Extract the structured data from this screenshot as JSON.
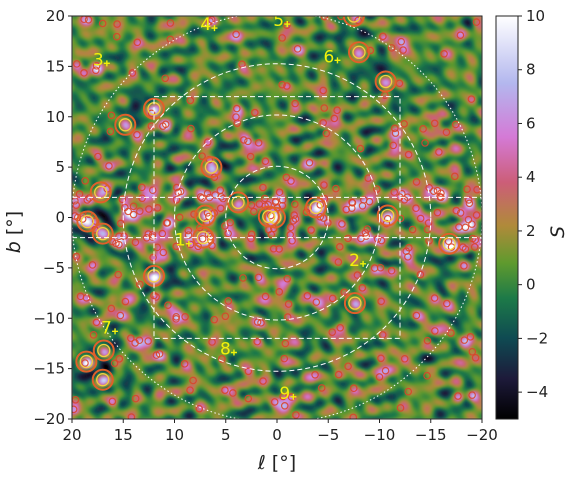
{
  "chart_data": {
    "type": "heatmap",
    "x_axis": {
      "symbol": "ℓ",
      "unit": "[°]",
      "range": [
        20,
        -20
      ],
      "reversed": true,
      "ticks": [
        20,
        15,
        10,
        5,
        0,
        -5,
        -10,
        -15,
        -20
      ]
    },
    "y_axis": {
      "symbol": "b",
      "unit": "[°]",
      "range": [
        -20,
        20
      ],
      "ticks": [
        -20,
        -15,
        -10,
        -5,
        0,
        5,
        10,
        15,
        20
      ]
    },
    "colorbar": {
      "label": "S",
      "range": [
        -5,
        10
      ],
      "ticks": [
        -4,
        -2,
        0,
        2,
        4,
        6,
        8,
        10
      ],
      "colormap": [
        {
          "value": -5,
          "color": "#000000"
        },
        {
          "value": -3.5,
          "color": "#1d1a3a"
        },
        {
          "value": -2,
          "color": "#0f4a52"
        },
        {
          "value": -0.5,
          "color": "#1d7a48"
        },
        {
          "value": 0.8,
          "color": "#5f9a2e"
        },
        {
          "value": 2.2,
          "color": "#b08a3a"
        },
        {
          "value": 3.8,
          "color": "#cc5e78"
        },
        {
          "value": 5.5,
          "color": "#d47ad6"
        },
        {
          "value": 7.5,
          "color": "#b3b7ee"
        },
        {
          "value": 10,
          "color": "#ffffff"
        }
      ]
    },
    "overlays": {
      "circles_deg": [
        5,
        10,
        15,
        20
      ],
      "box": {
        "l": [
          12,
          -12
        ],
        "b": [
          -12,
          12
        ]
      },
      "band_b": [
        -2,
        2
      ]
    },
    "labeled_sources": [
      {
        "id": "1",
        "l": 8.6,
        "b": -2.6
      },
      {
        "id": "2",
        "l": -8.4,
        "b": -4.6
      },
      {
        "id": "3",
        "l": 16.6,
        "b": 15.3
      },
      {
        "id": "4",
        "l": 6.1,
        "b": 18.8
      },
      {
        "id": "5",
        "l": -1.0,
        "b": 19.2
      },
      {
        "id": "6",
        "l": -5.9,
        "b": 15.6
      },
      {
        "id": "7",
        "l": 15.8,
        "b": -11.3
      },
      {
        "id": "8",
        "l": 4.2,
        "b": -13.4
      },
      {
        "id": "9",
        "l": -1.6,
        "b": -17.8
      }
    ],
    "bright_sources": [
      {
        "l": 12.0,
        "b": 10.8,
        "s": 9.5
      },
      {
        "l": 14.8,
        "b": 9.2,
        "s": 6.5
      },
      {
        "l": -8.0,
        "b": 16.4,
        "s": 8.5
      },
      {
        "l": 6.4,
        "b": 5.0,
        "s": 8.0
      },
      {
        "l": 17.2,
        "b": 2.5,
        "s": 9.0
      },
      {
        "l": 18.5,
        "b": -0.4,
        "s": 8.5
      },
      {
        "l": 17.0,
        "b": -1.6,
        "s": 7.0
      },
      {
        "l": 7.2,
        "b": -2.0,
        "s": 9.0
      },
      {
        "l": 3.8,
        "b": 1.5,
        "s": 9.0
      },
      {
        "l": 0.2,
        "b": 0.0,
        "s": 7.5
      },
      {
        "l": -3.8,
        "b": 1.0,
        "s": 9.0
      },
      {
        "l": -16.8,
        "b": -2.6,
        "s": 10.0
      },
      {
        "l": 12.0,
        "b": -5.8,
        "s": 9.5
      },
      {
        "l": -7.6,
        "b": -8.5,
        "s": 9.0
      },
      {
        "l": 18.6,
        "b": -14.3,
        "s": 9.0
      },
      {
        "l": 16.9,
        "b": -13.2,
        "s": 8.5
      },
      {
        "l": 17.0,
        "b": -16.1,
        "s": 8.0
      },
      {
        "l": -10.6,
        "b": 13.5,
        "s": 5.5
      },
      {
        "l": 7.0,
        "b": 0.2,
        "s": 5.5
      },
      {
        "l": -10.8,
        "b": 0.2,
        "s": 6.0
      },
      {
        "l": 0.8,
        "b": 0.1,
        "s": 7.0
      },
      {
        "l": -7.5,
        "b": 20.0,
        "s": 6.0
      }
    ]
  }
}
